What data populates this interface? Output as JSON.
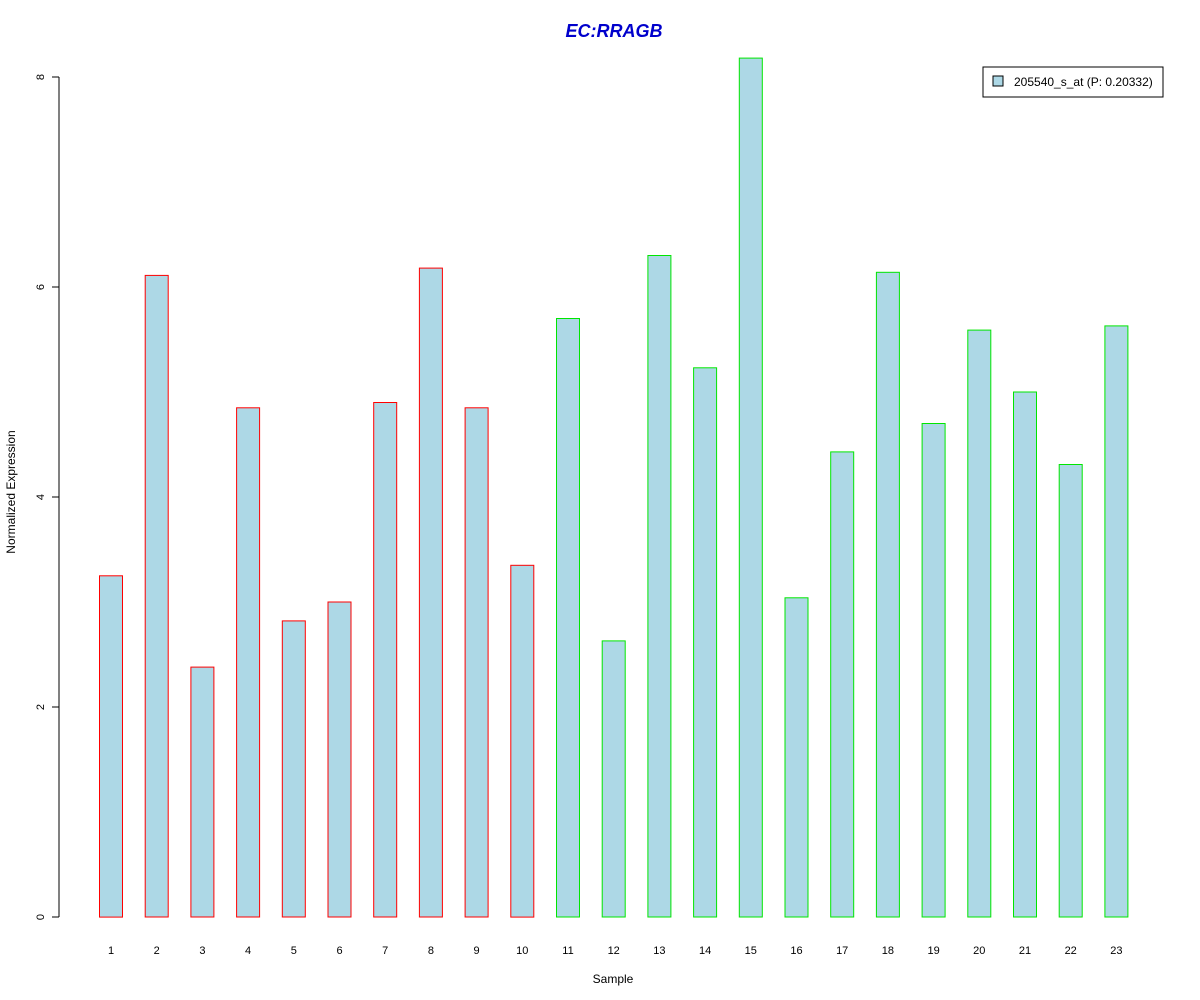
{
  "chart_data": {
    "type": "bar",
    "title": "EC:RRAGB",
    "xlabel": "Sample",
    "ylabel": "Normalized Expression",
    "categories": [
      "1",
      "2",
      "3",
      "4",
      "5",
      "6",
      "7",
      "8",
      "9",
      "10",
      "11",
      "12",
      "13",
      "14",
      "15",
      "16",
      "17",
      "18",
      "19",
      "20",
      "21",
      "22",
      "23"
    ],
    "series": [
      {
        "name": "205540_s_at (P: 0.20332)",
        "values": [
          3.25,
          6.11,
          2.38,
          4.85,
          2.82,
          3.0,
          4.9,
          6.18,
          4.85,
          3.35,
          5.7,
          2.63,
          6.3,
          5.23,
          8.18,
          3.04,
          4.43,
          6.14,
          4.7,
          5.59,
          5.0,
          4.31,
          5.63
        ]
      }
    ],
    "bar_outline_groups": [
      "red",
      "red",
      "red",
      "red",
      "red",
      "red",
      "red",
      "red",
      "red",
      "red",
      "green",
      "green",
      "green",
      "green",
      "green",
      "green",
      "green",
      "green",
      "green",
      "green",
      "green",
      "green",
      "green"
    ],
    "yticks": [
      0,
      2,
      4,
      6,
      8
    ],
    "ylim": [
      0,
      8.18
    ],
    "grid": false,
    "legend_position": "top-right"
  },
  "colors": {
    "title": "#0000CC",
    "bar_fill": "#ADD8E6",
    "red": "#FF0000",
    "green": "#00E600",
    "axis": "#000000"
  }
}
